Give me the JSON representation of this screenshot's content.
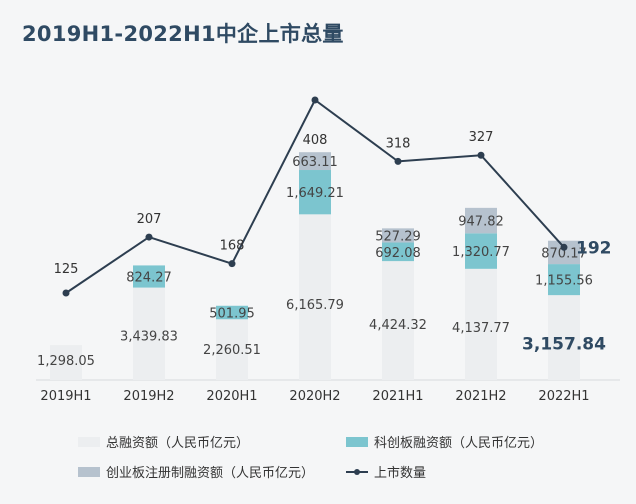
{
  "chart_data": {
    "type": "bar",
    "title": "2019H1-2022H1中企上市总量",
    "categories": [
      "2019H1",
      "2019H2",
      "2020H1",
      "2020H2",
      "2021H1",
      "2021H2",
      "2022H1"
    ],
    "series": [
      {
        "name": "总融资额（人民币亿元）",
        "type": "bar",
        "color": "#eceef0",
        "values": [
          1298.05,
          3439.83,
          2260.51,
          6165.79,
          4424.32,
          4137.77,
          3157.84
        ],
        "labels": [
          "1,298.05",
          "3,439.83",
          "2,260.51",
          "6,165.79",
          "4,424.32",
          "4,137.77",
          "3,157.84"
        ]
      },
      {
        "name": "科创板融资额（人民币亿元）",
        "type": "bar",
        "color": "#7cc5cf",
        "values": [
          null,
          824.27,
          501.95,
          1649.21,
          692.08,
          1320.77,
          1155.56
        ],
        "labels": [
          "",
          "824.27",
          "501.95",
          "1,649.21",
          "692.08",
          "1,320.77",
          "1,155.56"
        ]
      },
      {
        "name": "创业板注册制融资额（人民币亿元）",
        "type": "bar",
        "color": "#b6c2ce",
        "values": [
          null,
          null,
          null,
          663.11,
          527.29,
          947.82,
          870.17
        ],
        "labels": [
          "",
          "",
          "",
          "663.11",
          "527.29",
          "947.82",
          "870.17"
        ]
      },
      {
        "name": "上市数量",
        "type": "line",
        "color": "#2d3e50",
        "values": [
          125,
          207,
          168,
          408,
          318,
          327,
          192
        ],
        "labels": [
          "125",
          "207",
          "168",
          "408",
          "318",
          "327",
          "192"
        ]
      }
    ],
    "highlight_category": "2022H1",
    "highlight_color": "#2f4a63",
    "grid": false,
    "legend_position": "bottom"
  }
}
